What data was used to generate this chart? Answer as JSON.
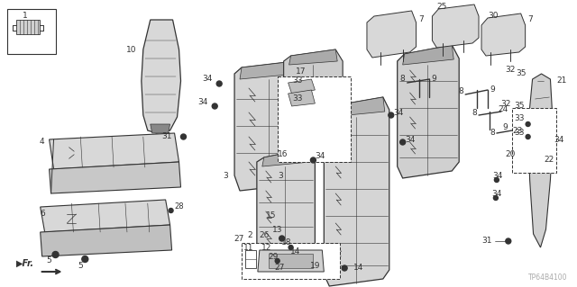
{
  "background_color": "#ffffff",
  "line_color": "#333333",
  "fig_width": 6.4,
  "fig_height": 3.19,
  "dpi": 100,
  "part_number": "TP64B4100",
  "part_number_color": "#aaaaaa"
}
